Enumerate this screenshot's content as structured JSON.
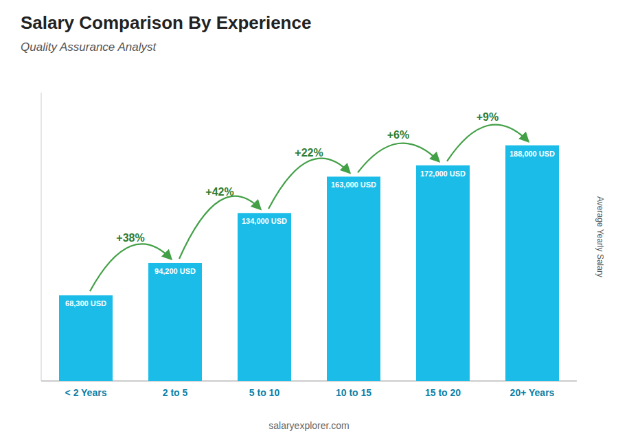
{
  "chart_data": {
    "type": "bar",
    "title": "Salary Comparison By Experience",
    "subtitle": "Quality Assurance Analyst",
    "categories": [
      "< 2 Years",
      "2 to 5",
      "5 to 10",
      "10 to 15",
      "15 to 20",
      "20+ Years"
    ],
    "values": [
      68300,
      94200,
      134000,
      163000,
      172000,
      188000
    ],
    "value_labels": [
      "68,300 USD",
      "94,200 USD",
      "134,000 USD",
      "163,000 USD",
      "172,000 USD",
      "188,000 USD"
    ],
    "data_labels": true,
    "annotations": [
      "+38%",
      "+42%",
      "+22%",
      "+6%",
      "+9%"
    ],
    "color": "#1BBDE8",
    "ylabel": "Average Yearly Salary",
    "footer": "salaryexplorer.com",
    "ylim": [
      0,
      230000
    ],
    "grid": false,
    "tick_labels": "x"
  }
}
